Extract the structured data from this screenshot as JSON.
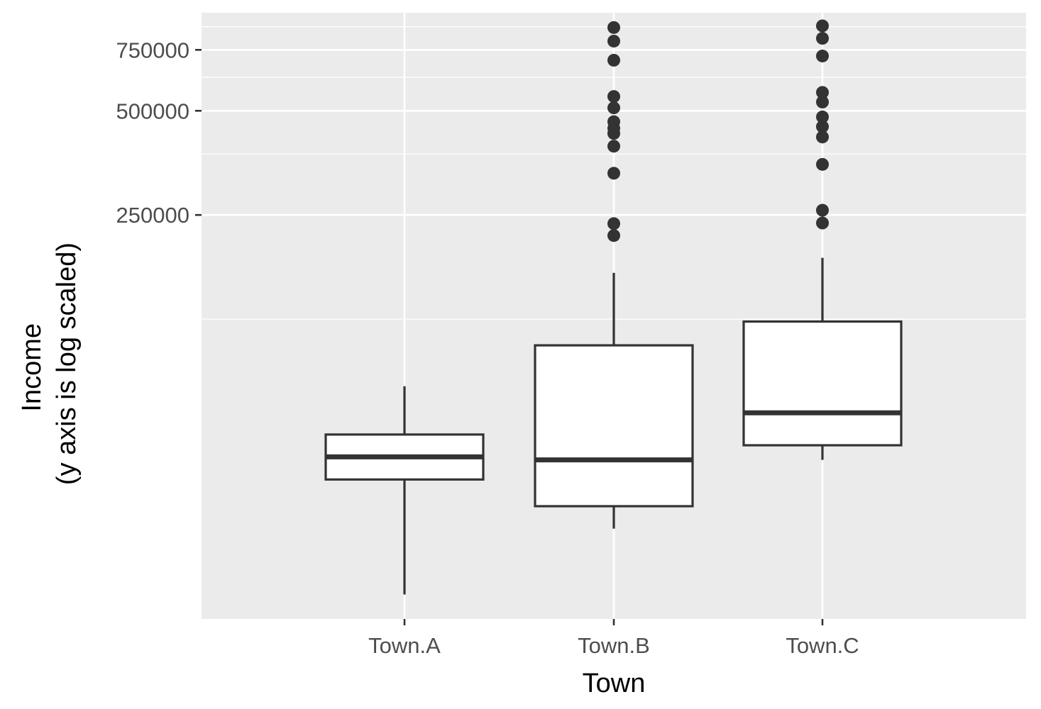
{
  "chart_data": {
    "type": "boxplot",
    "title": "",
    "xlabel": "Town",
    "ylabel_lines": [
      "Income",
      "(y axis is log scaled)"
    ],
    "y_scale": "log10",
    "ylim": [
      17000,
      960000
    ],
    "y_ticks": [
      {
        "value": 250000,
        "label": "250000"
      },
      {
        "value": 500000,
        "label": "500000"
      },
      {
        "value": 750000,
        "label": "750000"
      }
    ],
    "y_minor_gridlines": [
      125000,
      375000,
      625000,
      875000
    ],
    "grid": true,
    "legend": "none",
    "categories": [
      "Town.A",
      "Town.B",
      "Town.C"
    ],
    "boxes": [
      {
        "category": "Town.A",
        "whisker_low": 20000,
        "q1": 43000,
        "median": 50000,
        "q3": 58000,
        "whisker_high": 80000,
        "outliers": []
      },
      {
        "category": "Town.B",
        "whisker_low": 31000,
        "q1": 36000,
        "median": 49000,
        "q3": 105000,
        "whisker_high": 170000,
        "outliers": [
          218000,
          236000,
          330000,
          395000,
          430000,
          445000,
          465000,
          510000,
          550000,
          700000,
          795000,
          870000
        ]
      },
      {
        "category": "Town.C",
        "whisker_low": 49000,
        "q1": 54000,
        "median": 67000,
        "q3": 123000,
        "whisker_high": 188000,
        "outliers": [
          237000,
          258000,
          350000,
          420000,
          450000,
          480000,
          530000,
          565000,
          720000,
          810000,
          880000
        ]
      }
    ],
    "colors": {
      "panel_background": "#ebebeb",
      "gridline": "#ffffff",
      "box_fill": "#ffffff",
      "box_stroke": "#333333",
      "outlier": "#333333",
      "tick_label": "#4d4d4d",
      "axis_title": "#000000"
    }
  }
}
